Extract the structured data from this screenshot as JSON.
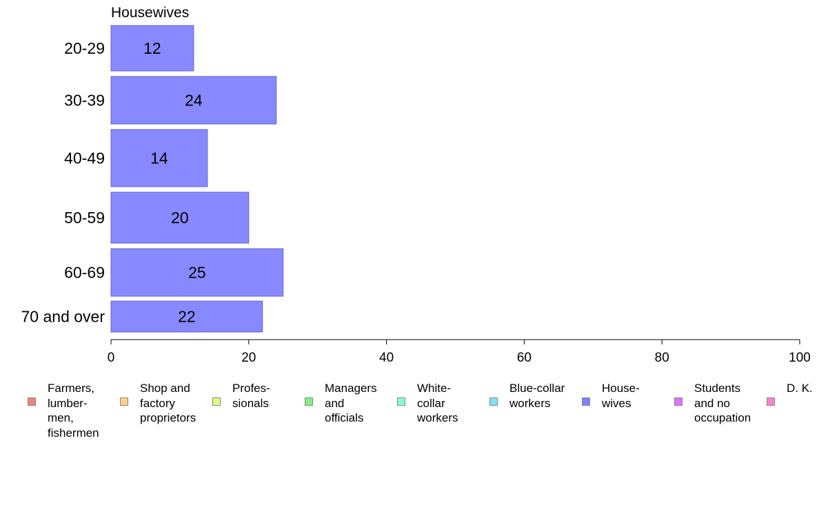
{
  "chart_data": {
    "type": "bar",
    "orientation": "horizontal",
    "title": "Housewives",
    "categories": [
      "20-29",
      "30-39",
      "40-49",
      "50-59",
      "60-69",
      "70 and over"
    ],
    "values": [
      12,
      24,
      14,
      20,
      25,
      22
    ],
    "data_labels": [
      "12",
      "24",
      "14",
      "20",
      "25",
      "22"
    ],
    "bar_color": "#8888ff",
    "bar_edge_color": "#6666cc",
    "xlim": [
      0,
      100
    ],
    "xticks": [
      "0",
      "20",
      "40",
      "60",
      "80",
      "100"
    ],
    "grid": false,
    "legend_position": "bottom",
    "legend": [
      {
        "label": "Farmers,\nlumber-\nmen,\nfishermen",
        "color": "#f08080"
      },
      {
        "label": "Shop and\nfactory\nproprietors",
        "color": "#ffd080"
      },
      {
        "label": "Profes-\nsionals",
        "color": "#e0ff80"
      },
      {
        "label": "Managers\nand\nofficials",
        "color": "#80f080"
      },
      {
        "label": "White-\ncollar\nworkers",
        "color": "#80ffd8"
      },
      {
        "label": "Blue-collar\nworkers",
        "color": "#80e0ff"
      },
      {
        "label": "House-\nwives",
        "color": "#8080ff"
      },
      {
        "label": "Students\nand no\noccupation",
        "color": "#e070ff"
      },
      {
        "label": "D. K.",
        "color": "#ff80d0"
      }
    ]
  }
}
